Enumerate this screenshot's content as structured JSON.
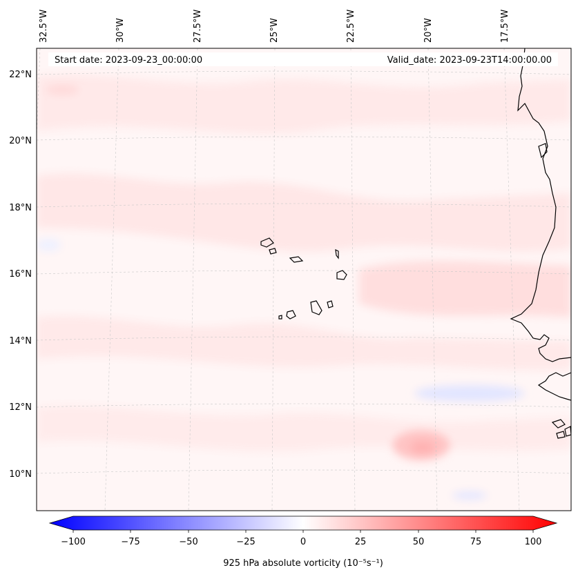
{
  "map": {
    "start_date": "Start date: 2023-09-23_00:00:00",
    "valid_date": "Valid_date: 2023-09-23T14:00:00.00",
    "longitude_labels": [
      "32.5°W",
      "30°W",
      "27.5°W",
      "25°W",
      "22.5°W",
      "20°W",
      "17.5°W"
    ],
    "latitude_labels": [
      "22°N",
      "20°N",
      "18°N",
      "16°N",
      "14°N",
      "12°N",
      "10°N"
    ],
    "field_colors": {
      "background": "#fff6f6",
      "weak_positive": "#ffe6e6",
      "moderate_positive": "#ffc8c8",
      "weak_negative": "#eef0ff",
      "moderate_negative": "#dde0ff",
      "coastline": "#000000",
      "gridline": "#c8c8c8"
    }
  },
  "colorbar": {
    "tick_labels": [
      "−100",
      "−75",
      "−50",
      "−25",
      "0",
      "25",
      "50",
      "75",
      "100"
    ],
    "tick_values": [
      -100,
      -75,
      -50,
      -25,
      0,
      25,
      50,
      75,
      100
    ],
    "min": -100,
    "max": 100,
    "label": "925 hPa absolute vorticity (10⁻⁵s⁻¹)",
    "colors": {
      "min": "#0000ff",
      "mid": "#ffffff",
      "max": "#ff0000"
    }
  }
}
